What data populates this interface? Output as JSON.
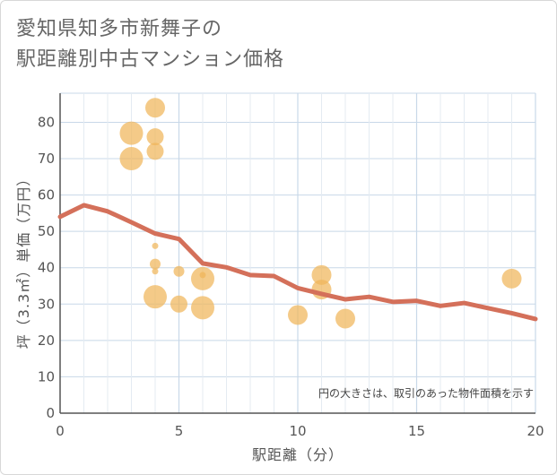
{
  "header": {
    "title_line1": "愛知県知多市新舞子の",
    "title_line2": "駅距離別中古マンション価格"
  },
  "chart_data": {
    "type": "scatter",
    "xlabel": "駅距離（分）",
    "ylabel": "坪（3.3㎡）単価（万円）",
    "xlim": [
      0,
      20
    ],
    "ylim": [
      0,
      88
    ],
    "xticks": [
      0,
      5,
      10,
      15,
      20
    ],
    "yticks": [
      0,
      10,
      20,
      30,
      40,
      50,
      60,
      70,
      80
    ],
    "grid": true,
    "annotation": "円の大きさは、取引のあった物件面積を示す",
    "colors": {
      "bubble": "#f0b65a",
      "line": "#d4705a",
      "grid_major": "#c8d8e8",
      "grid_minor": "#e4ebf2"
    },
    "bubbles": [
      {
        "x": 3,
        "y": 77,
        "size": 5
      },
      {
        "x": 3,
        "y": 70,
        "size": 5
      },
      {
        "x": 4,
        "y": 84,
        "size": 4
      },
      {
        "x": 4,
        "y": 76,
        "size": 3
      },
      {
        "x": 4,
        "y": 72,
        "size": 3
      },
      {
        "x": 4,
        "y": 46,
        "size": 1
      },
      {
        "x": 4,
        "y": 41,
        "size": 2
      },
      {
        "x": 4,
        "y": 39,
        "size": 1
      },
      {
        "x": 4,
        "y": 32,
        "size": 5
      },
      {
        "x": 5,
        "y": 39,
        "size": 2
      },
      {
        "x": 5,
        "y": 30,
        "size": 3
      },
      {
        "x": 6,
        "y": 38,
        "size": 1
      },
      {
        "x": 6,
        "y": 37,
        "size": 5
      },
      {
        "x": 6,
        "y": 29,
        "size": 5
      },
      {
        "x": 10,
        "y": 27,
        "size": 4
      },
      {
        "x": 11,
        "y": 38,
        "size": 4
      },
      {
        "x": 11,
        "y": 34,
        "size": 4
      },
      {
        "x": 12,
        "y": 26,
        "size": 4
      },
      {
        "x": 19,
        "y": 37,
        "size": 4
      }
    ],
    "trend_line": {
      "x": [
        0,
        1,
        2,
        3,
        4,
        5,
        6,
        7,
        8,
        9,
        10,
        11,
        12,
        13,
        14,
        15,
        16,
        17,
        18,
        19,
        20
      ],
      "y": [
        54,
        57.2,
        55.5,
        52.5,
        49.4,
        47.9,
        41.2,
        40.1,
        38,
        37.7,
        34.4,
        32.8,
        31.3,
        32,
        30.6,
        30.9,
        29.5,
        30.3,
        28.9,
        27.5,
        25.9
      ]
    }
  }
}
